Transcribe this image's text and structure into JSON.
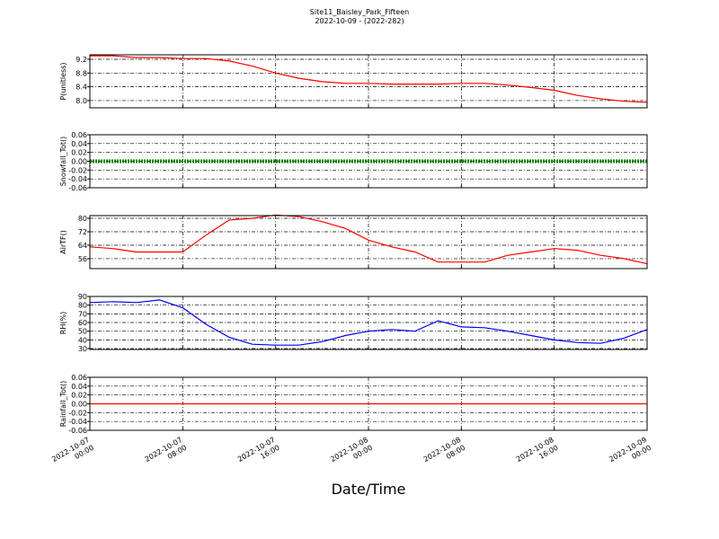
{
  "title": "Site11_Baisley_Park_Fifteen",
  "subtitle": "2022-10-09 - (2022-282)",
  "xlabel": "Date/Time",
  "chart_data": [
    {
      "type": "line",
      "ylabel": "P(unitless)",
      "x": [
        "2022-10-07 00:00",
        "2022-10-07 02:00",
        "2022-10-07 04:00",
        "2022-10-07 06:00",
        "2022-10-07 08:00",
        "2022-10-07 10:00",
        "2022-10-07 12:00",
        "2022-10-07 14:00",
        "2022-10-07 16:00",
        "2022-10-07 18:00",
        "2022-10-07 20:00",
        "2022-10-07 22:00",
        "2022-10-08 00:00",
        "2022-10-08 02:00",
        "2022-10-08 04:00",
        "2022-10-08 06:00",
        "2022-10-08 08:00",
        "2022-10-08 10:00",
        "2022-10-08 12:00",
        "2022-10-08 14:00",
        "2022-10-08 16:00",
        "2022-10-08 18:00",
        "2022-10-08 20:00",
        "2022-10-08 22:00",
        "2022-10-09 00:00"
      ],
      "series": [
        {
          "color": "#ff0000",
          "values": [
            9.3,
            9.3,
            9.25,
            9.25,
            9.22,
            9.22,
            9.15,
            9.0,
            8.8,
            8.65,
            8.55,
            8.5,
            8.5,
            8.48,
            8.48,
            8.48,
            8.5,
            8.5,
            8.45,
            8.38,
            8.3,
            8.15,
            8.05,
            7.98,
            7.95
          ]
        }
      ],
      "xlim": [
        "2022-10-07 00:00",
        "2022-10-09 00:00"
      ],
      "xticks": [
        "2022-10-07 00:00",
        "2022-10-07 08:00",
        "2022-10-07 16:00",
        "2022-10-08 00:00",
        "2022-10-08 08:00",
        "2022-10-08 16:00",
        "2022-10-09 00:00"
      ],
      "ylim": [
        7.79,
        9.33
      ],
      "yticks": [
        {
          "value": 8,
          "label": "8.0"
        },
        8.4,
        8.8,
        9.2
      ],
      "grid": true
    },
    {
      "type": "line",
      "ylabel": "Snowfall_Tot()",
      "linewidth": 4,
      "x": [
        "2022-10-07 00:00",
        "2022-10-07 02:00",
        "2022-10-07 04:00",
        "2022-10-07 06:00",
        "2022-10-07 08:00",
        "2022-10-07 10:00",
        "2022-10-07 12:00",
        "2022-10-07 14:00",
        "2022-10-07 16:00",
        "2022-10-07 18:00",
        "2022-10-07 20:00",
        "2022-10-07 22:00",
        "2022-10-08 00:00",
        "2022-10-08 02:00",
        "2022-10-08 04:00",
        "2022-10-08 06:00",
        "2022-10-08 08:00",
        "2022-10-08 10:00",
        "2022-10-08 12:00",
        "2022-10-08 14:00",
        "2022-10-08 16:00",
        "2022-10-08 18:00",
        "2022-10-08 20:00",
        "2022-10-08 22:00",
        "2022-10-09 00:00"
      ],
      "series": [
        {
          "color": "#008000",
          "values": [
            0,
            0,
            0,
            0,
            0,
            0,
            0,
            0,
            0,
            0,
            0,
            0,
            0,
            0,
            0,
            0,
            0,
            0,
            0,
            0,
            0,
            0,
            0,
            0,
            0
          ]
        }
      ],
      "xlim": [
        "2022-10-07 00:00",
        "2022-10-09 00:00"
      ],
      "xticks": [
        "2022-10-07 00:00",
        "2022-10-07 08:00",
        "2022-10-07 16:00",
        "2022-10-08 00:00",
        "2022-10-08 08:00",
        "2022-10-08 16:00",
        "2022-10-09 00:00"
      ],
      "ylim": [
        -0.06,
        0.06
      ],
      "yticks": [
        -0.06,
        -0.04,
        -0.02,
        {
          "value": 0,
          "label": "0.00"
        },
        0.02,
        0.04,
        0.06
      ],
      "grid": true
    },
    {
      "type": "line",
      "ylabel": "AirTF()",
      "x": [
        "2022-10-07 00:00",
        "2022-10-07 02:00",
        "2022-10-07 04:00",
        "2022-10-07 06:00",
        "2022-10-07 08:00",
        "2022-10-07 10:00",
        "2022-10-07 12:00",
        "2022-10-07 14:00",
        "2022-10-07 16:00",
        "2022-10-07 18:00",
        "2022-10-07 20:00",
        "2022-10-07 22:00",
        "2022-10-08 00:00",
        "2022-10-08 02:00",
        "2022-10-08 04:00",
        "2022-10-08 06:00",
        "2022-10-08 08:00",
        "2022-10-08 10:00",
        "2022-10-08 12:00",
        "2022-10-08 14:00",
        "2022-10-08 16:00",
        "2022-10-08 18:00",
        "2022-10-08 20:00",
        "2022-10-08 22:00",
        "2022-10-09 00:00"
      ],
      "series": [
        {
          "color": "#ff0000",
          "values": [
            63,
            62,
            60,
            60,
            60,
            70,
            79,
            80,
            82,
            81,
            78,
            74,
            67,
            63,
            60,
            54,
            54,
            54,
            58,
            60,
            62,
            61,
            58,
            56,
            53
          ]
        }
      ],
      "xlim": [
        "2022-10-07 00:00",
        "2022-10-09 00:00"
      ],
      "xticks": [
        "2022-10-07 00:00",
        "2022-10-07 08:00",
        "2022-10-07 16:00",
        "2022-10-08 00:00",
        "2022-10-08 08:00",
        "2022-10-08 16:00",
        "2022-10-09 00:00"
      ],
      "ylim": [
        50.1,
        81.6
      ],
      "yticks": [
        56,
        64,
        72,
        80
      ],
      "grid": true
    },
    {
      "type": "line",
      "ylabel": "RH(%)",
      "x": [
        "2022-10-07 00:00",
        "2022-10-07 02:00",
        "2022-10-07 04:00",
        "2022-10-07 06:00",
        "2022-10-07 08:00",
        "2022-10-07 10:00",
        "2022-10-07 12:00",
        "2022-10-07 14:00",
        "2022-10-07 16:00",
        "2022-10-07 18:00",
        "2022-10-07 20:00",
        "2022-10-07 22:00",
        "2022-10-08 00:00",
        "2022-10-08 02:00",
        "2022-10-08 04:00",
        "2022-10-08 06:00",
        "2022-10-08 08:00",
        "2022-10-08 10:00",
        "2022-10-08 12:00",
        "2022-10-08 14:00",
        "2022-10-08 16:00",
        "2022-10-08 18:00",
        "2022-10-08 20:00",
        "2022-10-08 22:00",
        "2022-10-09 00:00"
      ],
      "series": [
        {
          "color": "#0000ff",
          "values": [
            83,
            84,
            83,
            86,
            77,
            58,
            43,
            35,
            34,
            34,
            38,
            45,
            50,
            52,
            50,
            62,
            55,
            54,
            50,
            45,
            40,
            37,
            36,
            42,
            52
          ]
        }
      ],
      "xlim": [
        "2022-10-07 00:00",
        "2022-10-09 00:00"
      ],
      "xticks": [
        "2022-10-07 00:00",
        "2022-10-07 08:00",
        "2022-10-07 16:00",
        "2022-10-08 00:00",
        "2022-10-08 08:00",
        "2022-10-08 16:00",
        "2022-10-09 00:00"
      ],
      "ylim": [
        29,
        90
      ],
      "yticks": [
        30,
        40,
        50,
        60,
        70,
        80,
        90
      ],
      "grid": true
    },
    {
      "type": "line",
      "ylabel": "Rainfall_Tot()",
      "x": [
        "2022-10-07 00:00",
        "2022-10-07 02:00",
        "2022-10-07 04:00",
        "2022-10-07 06:00",
        "2022-10-07 08:00",
        "2022-10-07 10:00",
        "2022-10-07 12:00",
        "2022-10-07 14:00",
        "2022-10-07 16:00",
        "2022-10-07 18:00",
        "2022-10-07 20:00",
        "2022-10-07 22:00",
        "2022-10-08 00:00",
        "2022-10-08 02:00",
        "2022-10-08 04:00",
        "2022-10-08 06:00",
        "2022-10-08 08:00",
        "2022-10-08 10:00",
        "2022-10-08 12:00",
        "2022-10-08 14:00",
        "2022-10-08 16:00",
        "2022-10-08 18:00",
        "2022-10-08 20:00",
        "2022-10-08 22:00",
        "2022-10-09 00:00"
      ],
      "series": [
        {
          "color": "#ff0000",
          "values": [
            0,
            0,
            0,
            0,
            0,
            0,
            0,
            0,
            0,
            0,
            0,
            0,
            0,
            0,
            0,
            0,
            0,
            0,
            0,
            0,
            0,
            0,
            0,
            0,
            0
          ]
        }
      ],
      "xlim": [
        "2022-10-07 00:00",
        "2022-10-09 00:00"
      ],
      "xticks": [
        "2022-10-07 00:00",
        "2022-10-07 08:00",
        "2022-10-07 16:00",
        "2022-10-08 00:00",
        "2022-10-08 08:00",
        "2022-10-08 16:00",
        "2022-10-09 00:00"
      ],
      "ylim": [
        -0.06,
        0.06
      ],
      "yticks": [
        -0.06,
        -0.04,
        -0.02,
        {
          "value": 0,
          "label": "0.00"
        },
        0.02,
        0.04,
        0.06
      ],
      "grid": true,
      "show_xtick_labels": true
    }
  ]
}
